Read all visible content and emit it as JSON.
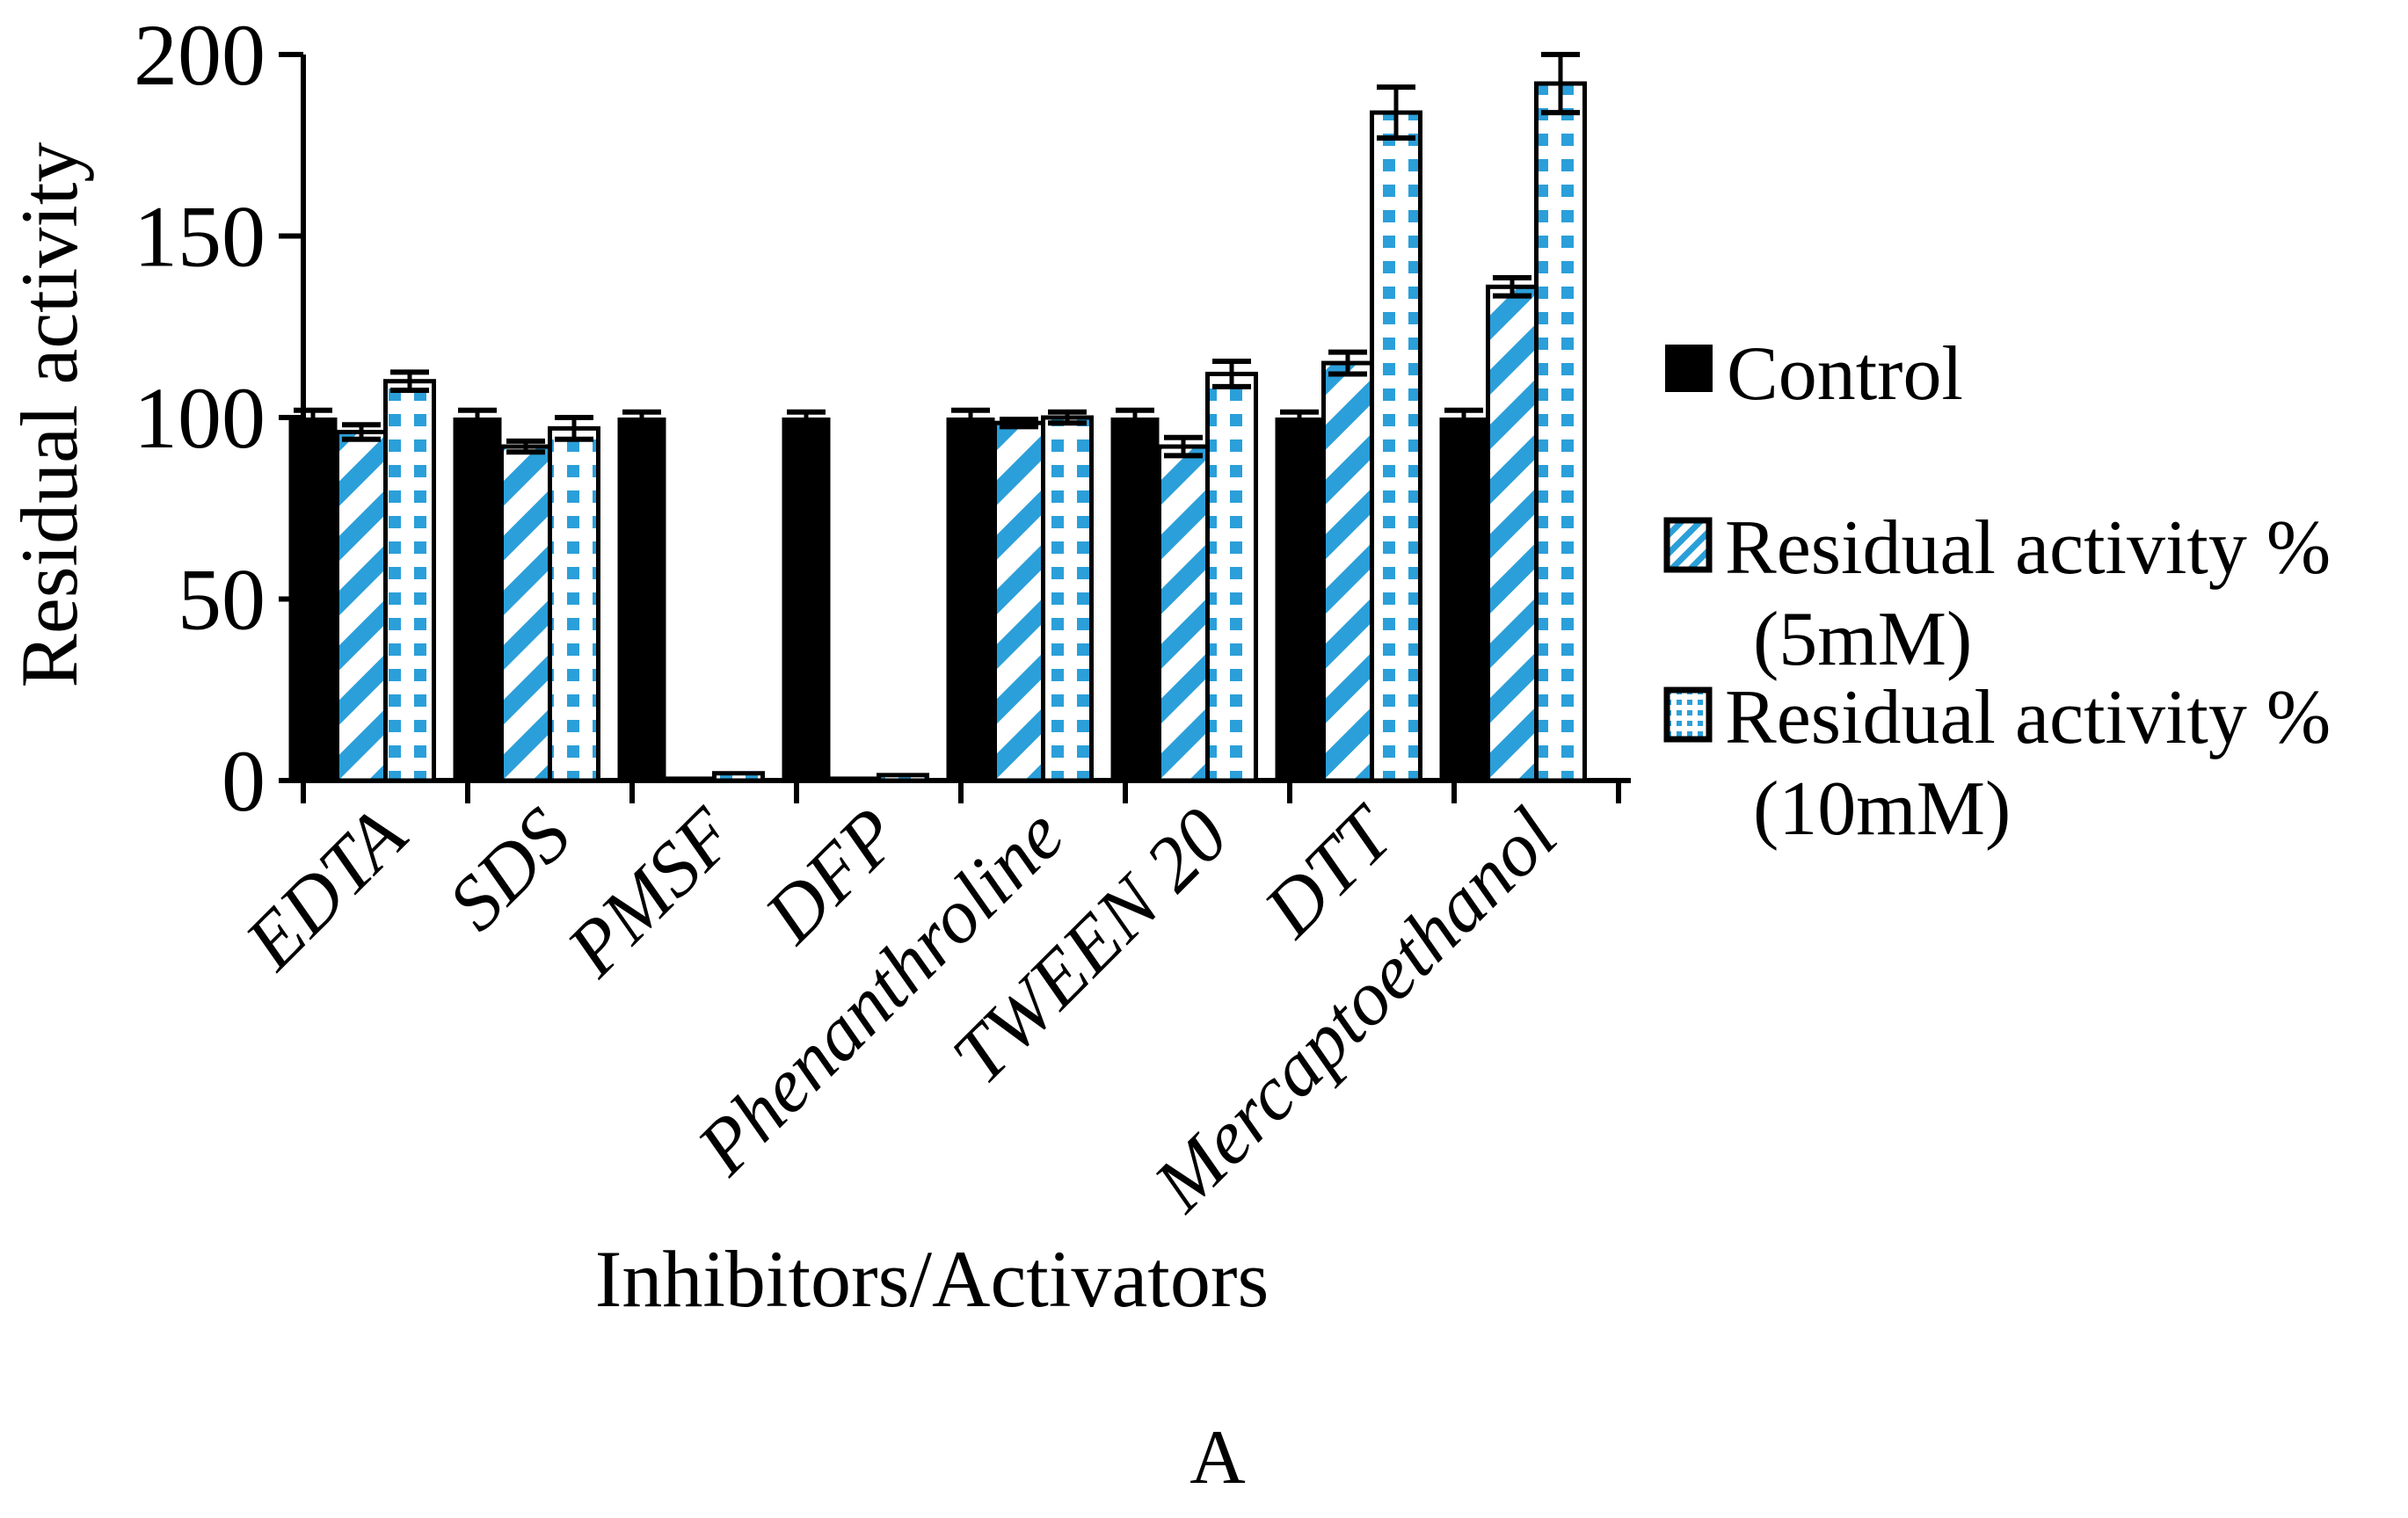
{
  "figure_label": "A",
  "legend": {
    "items": [
      {
        "line1": "Control",
        "line2": ""
      },
      {
        "line1": "Residual activity %",
        "line2": "(5mM)"
      },
      {
        "line1": "Residual activity %",
        "line2": "(10mM)"
      }
    ]
  },
  "chart_data": {
    "type": "bar",
    "title": "",
    "xlabel": "Inhibitors/Activators",
    "ylabel": "Residual activity",
    "ylim": [
      0,
      200
    ],
    "yticks": [
      0,
      50,
      100,
      150,
      200
    ],
    "grid": false,
    "legend_position": "right",
    "colors": {
      "blue": "#2B9FD9",
      "black": "#000000",
      "background": "#ffffff"
    },
    "categories": [
      "EDTA",
      "SDS",
      "PMSF",
      "DFP",
      "Phenanthroline",
      "TWEEN 20",
      "DTT",
      "Mercaptoethanol"
    ],
    "series": [
      {
        "name": "Control",
        "fill": "solid-black",
        "values": [
          100,
          100,
          100,
          100,
          100,
          100,
          100,
          100
        ],
        "errors": [
          2,
          2,
          1.5,
          1.5,
          2,
          2,
          1.5,
          2
        ]
      },
      {
        "name": "Residual activity % (5mM)",
        "fill": "blue-diagonal-stripes",
        "values": [
          96,
          92,
          0.5,
          0.5,
          98.5,
          92,
          115,
          136
        ],
        "errors": [
          2,
          1.5,
          0,
          0,
          1,
          2.5,
          3,
          2.5
        ]
      },
      {
        "name": "Residual activity % (10mM)",
        "fill": "blue-dots",
        "values": [
          110,
          97,
          2,
          1.5,
          100,
          112,
          184,
          192
        ],
        "errors": [
          2.5,
          3,
          0,
          0,
          1.5,
          3.5,
          7,
          8
        ]
      }
    ]
  }
}
